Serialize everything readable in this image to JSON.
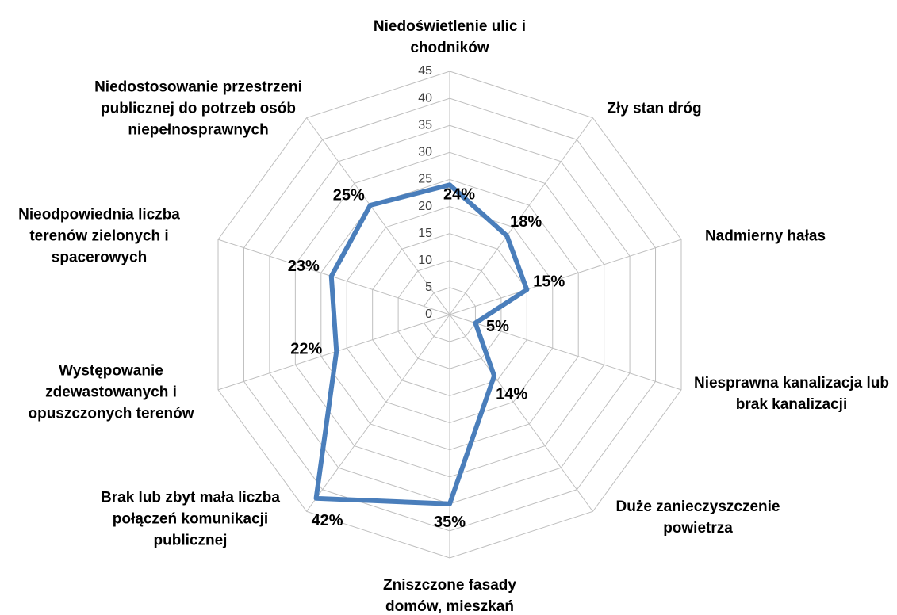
{
  "chart_data": {
    "type": "radar",
    "categories": [
      "Niedoświetlenie ulic i chodników",
      "Zły stan dróg",
      "Nadmierny hałas",
      "Niesprawna kanalizacja lub brak kanalizacji",
      "Duże zanieczyszczenie powietrza",
      "Zniszczone fasady domów, mieszkań",
      "Brak lub zbyt mała liczba połączeń komunikacji publicznej",
      "Występowanie zdewastowanych i opuszczonych terenów",
      "Nieodpowiednia liczba terenów zielonych i spacerowych",
      "Niedostosowanie przestrzeni publicznej do potrzeb osób niepełnosprawnych"
    ],
    "values": [
      24,
      18,
      15,
      5,
      14,
      35,
      42,
      22,
      23,
      25
    ],
    "value_labels": [
      "24%",
      "18%",
      "15%",
      "5%",
      "14%",
      "35%",
      "42%",
      "22%",
      "23%",
      "25%"
    ],
    "color": "#4a7ebb",
    "ylim": [
      0,
      45
    ],
    "yticks": [
      0,
      5,
      10,
      15,
      20,
      25,
      30,
      35,
      40,
      45
    ],
    "grid": true
  }
}
